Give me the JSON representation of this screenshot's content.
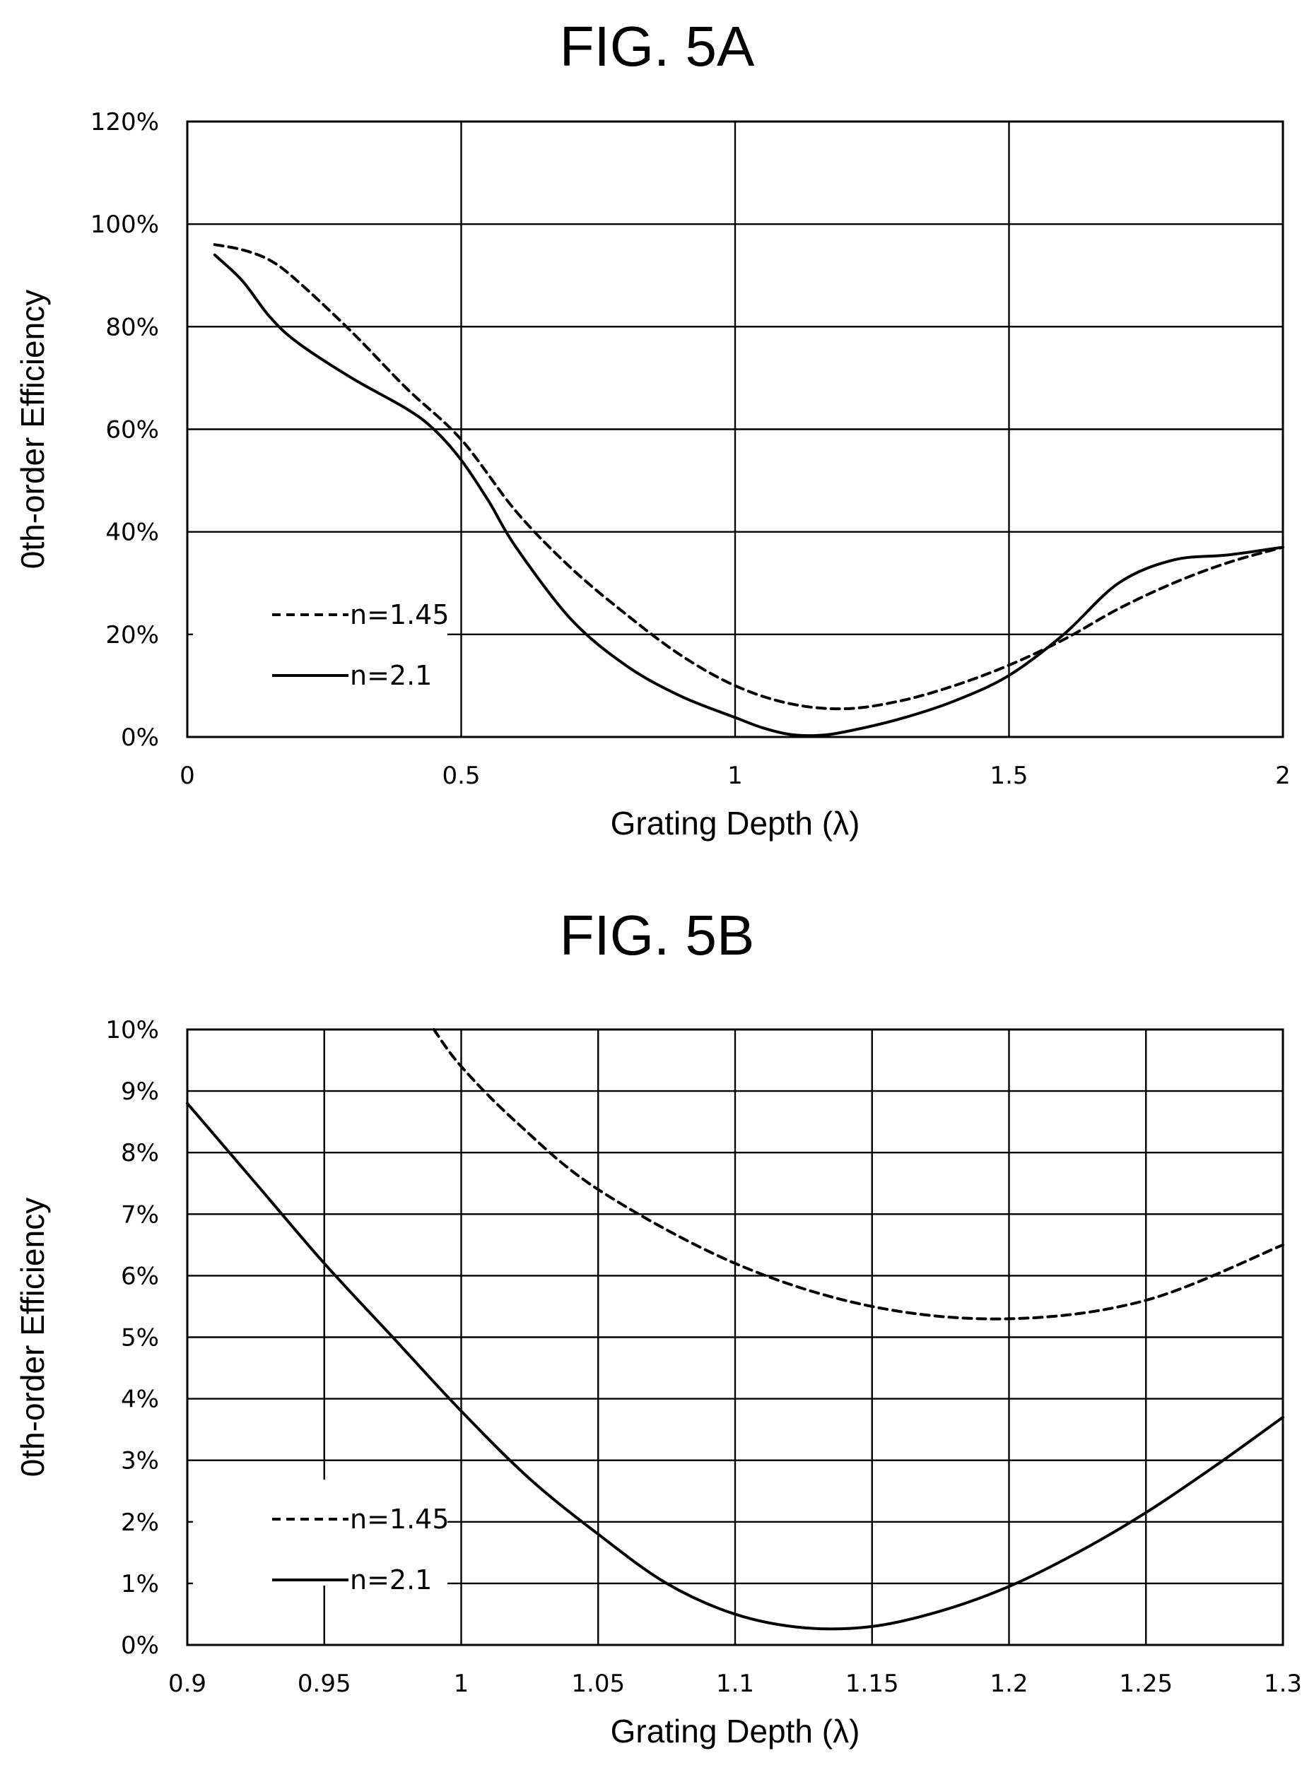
{
  "figures": [
    {
      "title": "FIG. 5A"
    },
    {
      "title": "FIG. 5B"
    }
  ],
  "chart_data": [
    {
      "type": "line",
      "title": "FIG. 5A",
      "xlabel": "Grating Depth (λ)",
      "ylabel": "0th-order Efficiency",
      "xlim": [
        0,
        2
      ],
      "ylim": [
        0,
        120
      ],
      "xticks": [
        0,
        0.5,
        1,
        1.5,
        2
      ],
      "xtick_labels": [
        "0",
        "0.5",
        "1",
        "1.5",
        "2"
      ],
      "yticks": [
        0,
        20,
        40,
        60,
        80,
        100,
        120
      ],
      "ytick_labels": [
        "0%",
        "20%",
        "40%",
        "60%",
        "80%",
        "100%",
        "120%"
      ],
      "grid": true,
      "legend_position": "bottom-left",
      "series": [
        {
          "name": "n=1.45",
          "style": "dashed",
          "color": "#000000",
          "x": [
            0.05,
            0.1,
            0.15,
            0.2,
            0.3,
            0.4,
            0.5,
            0.6,
            0.7,
            0.8,
            0.9,
            1.0,
            1.1,
            1.2,
            1.3,
            1.4,
            1.5,
            1.6,
            1.7,
            1.8,
            1.9,
            2.0
          ],
          "y": [
            96,
            95,
            93,
            89,
            79,
            68,
            58,
            44,
            33,
            24,
            16,
            10,
            6.5,
            5.5,
            7,
            10,
            14,
            19,
            25,
            30,
            34,
            37
          ]
        },
        {
          "name": "n=2.1",
          "style": "solid",
          "color": "#000000",
          "x": [
            0.05,
            0.1,
            0.15,
            0.2,
            0.3,
            0.4,
            0.45,
            0.5,
            0.55,
            0.6,
            0.7,
            0.8,
            0.9,
            1.0,
            1.05,
            1.1,
            1.15,
            1.2,
            1.3,
            1.4,
            1.5,
            1.6,
            1.7,
            1.8,
            1.9,
            2.0
          ],
          "y": [
            94,
            89,
            82,
            77,
            70,
            64,
            60,
            54,
            46,
            37,
            23,
            14,
            8,
            3.8,
            1.8,
            0.5,
            0.3,
            1,
            3.5,
            7,
            12,
            20,
            30,
            34.5,
            35.5,
            37
          ]
        }
      ]
    },
    {
      "type": "line",
      "title": "FIG. 5B",
      "xlabel": "Grating Depth (λ)",
      "ylabel": "0th-order Efficiency",
      "xlim": [
        0.9,
        1.3
      ],
      "ylim": [
        0,
        10
      ],
      "xticks": [
        0.9,
        0.95,
        1.0,
        1.05,
        1.1,
        1.15,
        1.2,
        1.25,
        1.3
      ],
      "xtick_labels": [
        "0.9",
        "0.95",
        "1",
        "1.05",
        "1.1",
        "1.15",
        "1.2",
        "1.25",
        "1.3"
      ],
      "yticks": [
        0,
        1,
        2,
        3,
        4,
        5,
        6,
        7,
        8,
        9,
        10
      ],
      "ytick_labels": [
        "0%",
        "1%",
        "2%",
        "3%",
        "4%",
        "5%",
        "6%",
        "7%",
        "8%",
        "9%",
        "10%"
      ],
      "grid": true,
      "legend_position": "bottom-left",
      "series": [
        {
          "name": "n=1.45",
          "style": "dashed",
          "color": "#000000",
          "x": [
            0.99,
            1.0,
            1.02,
            1.05,
            1.1,
            1.15,
            1.2,
            1.25,
            1.3
          ],
          "y": [
            10,
            9.4,
            8.5,
            7.4,
            6.2,
            5.5,
            5.3,
            5.6,
            6.5
          ]
        },
        {
          "name": "n=2.1",
          "style": "solid",
          "color": "#000000",
          "x": [
            0.9,
            0.925,
            0.95,
            0.975,
            1.0,
            1.025,
            1.05,
            1.075,
            1.1,
            1.125,
            1.15,
            1.175,
            1.2,
            1.225,
            1.25,
            1.275,
            1.3
          ],
          "y": [
            8.8,
            7.5,
            6.2,
            5.0,
            3.8,
            2.7,
            1.8,
            1.0,
            0.5,
            0.28,
            0.3,
            0.55,
            0.95,
            1.5,
            2.15,
            2.9,
            3.7
          ]
        }
      ]
    }
  ]
}
